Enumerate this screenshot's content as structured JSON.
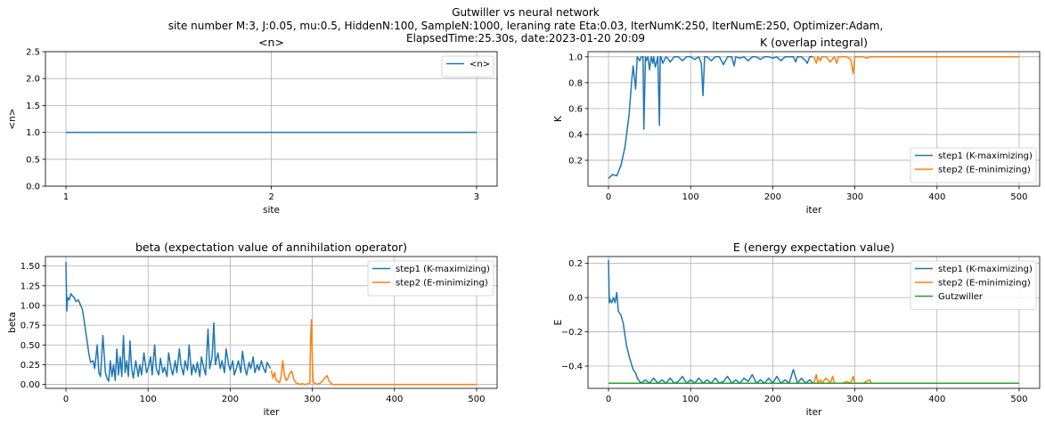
{
  "figure": {
    "title_lines": [
      "Gutwiller vs neural network",
      "site number M:3, J:0.05, mu:0.5, HiddenN:100, SampleN:1000, leraning rate Eta:0.03, IterNumK:250, IterNumE:250, Optimizer:Adam,",
      "ElapsedTime:25.30s, date:2023-01-20  20:09"
    ]
  },
  "colors": {
    "step1": "#1f77b4",
    "step2": "#ff7f0e",
    "gutzwiller": "#2ca02c",
    "grid": "#b0b0b0"
  },
  "chart_data": [
    {
      "type": "line",
      "title": "<n>",
      "xlabel": "site",
      "ylabel": "<n>",
      "xlim": [
        0.9,
        3.1
      ],
      "ylim": [
        0,
        2.5
      ],
      "xticks": [
        1,
        2,
        3
      ],
      "yticks": [
        0.0,
        0.5,
        1.0,
        1.5,
        2.0,
        2.5
      ],
      "ytick_labels": [
        "0.0",
        "0.5",
        "1.0",
        "1.5",
        "2.0",
        "2.5"
      ],
      "legend_loc": "upper right",
      "series": [
        {
          "name": "<n>",
          "color_key": "step1",
          "x": [
            1,
            2,
            3
          ],
          "y": [
            1.0,
            1.0,
            1.0
          ]
        }
      ]
    },
    {
      "type": "line",
      "title": "K (overlap integral)",
      "xlabel": "iter",
      "ylabel": "K",
      "xlim": [
        -25,
        525
      ],
      "ylim": [
        0.0,
        1.04
      ],
      "xticks": [
        0,
        100,
        200,
        300,
        400,
        500
      ],
      "yticks": [
        0.2,
        0.4,
        0.6,
        0.8,
        1.0
      ],
      "ytick_labels": [
        "0.2",
        "0.4",
        "0.6",
        "0.8",
        "1.0"
      ],
      "legend_loc": "lower right",
      "series": [
        {
          "name": "step1 (K-maximizing)",
          "color_key": "step1",
          "x": [
            0,
            5,
            10,
            15,
            20,
            25,
            28,
            30,
            33,
            35,
            38,
            40,
            42,
            43,
            45,
            46,
            48,
            50,
            52,
            54,
            55,
            57,
            60,
            62,
            63,
            64,
            66,
            70,
            72,
            75,
            80,
            85,
            90,
            95,
            100,
            105,
            110,
            113,
            115,
            117,
            120,
            125,
            130,
            135,
            140,
            145,
            150,
            153,
            155,
            160,
            165,
            170,
            175,
            180,
            185,
            190,
            195,
            200,
            205,
            210,
            215,
            220,
            225,
            228,
            230,
            235,
            240,
            242,
            245,
            249
          ],
          "y": [
            0.06,
            0.09,
            0.08,
            0.16,
            0.3,
            0.55,
            0.8,
            0.93,
            0.75,
            1.0,
            0.97,
            1.0,
            1.0,
            0.44,
            1.0,
            0.97,
            1.0,
            0.9,
            1.0,
            0.95,
            1.0,
            0.92,
            1.0,
            0.47,
            1.0,
            1.0,
            0.95,
            1.0,
            0.99,
            0.96,
            1.0,
            1.0,
            0.97,
            1.0,
            1.0,
            0.98,
            1.0,
            0.95,
            0.7,
            1.0,
            1.0,
            0.97,
            1.0,
            1.0,
            0.94,
            1.0,
            1.0,
            0.93,
            1.0,
            0.99,
            1.0,
            0.97,
            1.0,
            1.0,
            0.98,
            1.0,
            1.0,
            0.99,
            1.0,
            0.97,
            1.0,
            1.0,
            1.0,
            0.96,
            1.0,
            1.0,
            0.97,
            0.95,
            1.0,
            1.0
          ]
        },
        {
          "name": "step2 (E-minimizing)",
          "color_key": "step2",
          "x": [
            250,
            253,
            255,
            258,
            260,
            265,
            270,
            275,
            278,
            280,
            285,
            290,
            295,
            298,
            300,
            302,
            305,
            310,
            315,
            318,
            320,
            330,
            350,
            400,
            450,
            500
          ],
          "y": [
            1.0,
            0.95,
            1.0,
            0.97,
            1.0,
            1.0,
            0.96,
            1.0,
            0.95,
            1.0,
            1.0,
            1.0,
            0.98,
            0.87,
            1.0,
            1.0,
            1.0,
            1.0,
            0.99,
            1.0,
            1.0,
            1.0,
            1.0,
            1.0,
            1.0,
            1.0
          ]
        }
      ]
    },
    {
      "type": "line",
      "title": "beta (expectation value of annihilation operator)",
      "xlabel": "iter",
      "ylabel": "beta",
      "xlim": [
        -25,
        525
      ],
      "ylim": [
        -0.05,
        1.62
      ],
      "xticks": [
        0,
        100,
        200,
        300,
        400,
        500
      ],
      "yticks": [
        0.0,
        0.25,
        0.5,
        0.75,
        1.0,
        1.25,
        1.5
      ],
      "ytick_labels": [
        "0.00",
        "0.25",
        "0.50",
        "0.75",
        "1.00",
        "1.25",
        "1.50"
      ],
      "legend_loc": "upper right",
      "series": [
        {
          "name": "step1 (K-maximizing)",
          "color_key": "step1",
          "x": [
            0,
            1,
            2,
            4,
            6,
            8,
            10,
            12,
            15,
            18,
            20,
            22,
            25,
            28,
            30,
            33,
            35,
            38,
            40,
            42,
            45,
            48,
            50,
            52,
            54,
            56,
            58,
            60,
            62,
            64,
            66,
            68,
            70,
            72,
            74,
            76,
            78,
            80,
            82,
            85,
            88,
            90,
            92,
            95,
            98,
            100,
            103,
            105,
            108,
            110,
            113,
            115,
            118,
            120,
            123,
            125,
            128,
            130,
            133,
            135,
            138,
            140,
            143,
            145,
            148,
            150,
            153,
            155,
            158,
            160,
            163,
            165,
            168,
            170,
            173,
            175,
            178,
            180,
            182,
            185,
            188,
            190,
            193,
            195,
            198,
            200,
            203,
            205,
            208,
            210,
            213,
            215,
            218,
            220,
            223,
            225,
            228,
            230,
            233,
            235,
            238,
            240,
            243,
            245,
            249
          ],
          "y": [
            1.55,
            0.93,
            1.1,
            1.07,
            1.15,
            1.12,
            1.1,
            1.05,
            1.07,
            1.0,
            0.95,
            0.82,
            0.6,
            0.38,
            0.28,
            0.3,
            0.2,
            0.5,
            0.15,
            0.1,
            0.62,
            0.15,
            0.08,
            0.04,
            0.3,
            0.1,
            0.25,
            0.05,
            0.45,
            0.12,
            0.35,
            0.1,
            0.62,
            0.15,
            0.3,
            0.1,
            0.55,
            0.2,
            0.08,
            0.3,
            0.1,
            0.25,
            0.12,
            0.4,
            0.15,
            0.2,
            0.35,
            0.12,
            0.5,
            0.2,
            0.12,
            0.33,
            0.15,
            0.22,
            0.1,
            0.4,
            0.2,
            0.12,
            0.3,
            0.15,
            0.45,
            0.25,
            0.12,
            0.3,
            0.18,
            0.5,
            0.12,
            0.25,
            0.15,
            0.28,
            0.1,
            0.35,
            0.2,
            0.12,
            0.7,
            0.2,
            0.35,
            0.78,
            0.25,
            0.4,
            0.2,
            0.3,
            0.15,
            0.45,
            0.25,
            0.18,
            0.3,
            0.12,
            0.22,
            0.3,
            0.15,
            0.42,
            0.2,
            0.12,
            0.28,
            0.2,
            0.35,
            0.15,
            0.25,
            0.18,
            0.3,
            0.22,
            0.15,
            0.28,
            0.2
          ]
        },
        {
          "name": "step2 (E-minimizing)",
          "color_key": "step2",
          "x": [
            250,
            252,
            254,
            256,
            258,
            260,
            262,
            264,
            266,
            268,
            270,
            272,
            275,
            278,
            280,
            283,
            285,
            288,
            290,
            292,
            295,
            297,
            298,
            299,
            300,
            301,
            302,
            304,
            306,
            310,
            313,
            315,
            318,
            320,
            323,
            325,
            330,
            340,
            350,
            400,
            450,
            500
          ],
          "y": [
            0.18,
            0.08,
            0.15,
            0.05,
            0.04,
            0.02,
            0.1,
            0.3,
            0.12,
            0.05,
            0.07,
            0.13,
            0.17,
            0.05,
            0.02,
            0.01,
            0.0,
            0.01,
            0.0,
            0.0,
            0.01,
            0.02,
            0.6,
            0.82,
            0.3,
            0.05,
            0.02,
            0.01,
            0.0,
            0.02,
            0.05,
            0.08,
            0.11,
            0.05,
            0.01,
            0.0,
            0.0,
            0.0,
            0.0,
            0.0,
            0.0,
            0.0
          ]
        }
      ]
    },
    {
      "type": "line",
      "title": "E (energy expectation value)",
      "xlabel": "iter",
      "ylabel": "E",
      "xlim": [
        -25,
        525
      ],
      "ylim": [
        -0.53,
        0.24
      ],
      "xticks": [
        0,
        100,
        200,
        300,
        400,
        500
      ],
      "yticks": [
        -0.4,
        -0.2,
        0.0,
        0.2
      ],
      "ytick_labels": [
        "−0.4",
        "−0.2",
        "0.0",
        "0.2"
      ],
      "legend_loc": "upper right",
      "series": [
        {
          "name": "step1 (K-maximizing)",
          "color_key": "step1",
          "x": [
            0,
            1,
            2,
            4,
            6,
            8,
            10,
            12,
            15,
            18,
            20,
            22,
            25,
            28,
            30,
            33,
            35,
            38,
            40,
            45,
            50,
            55,
            60,
            65,
            70,
            75,
            80,
            85,
            90,
            95,
            100,
            105,
            110,
            115,
            120,
            125,
            130,
            135,
            140,
            145,
            150,
            155,
            160,
            165,
            170,
            175,
            180,
            185,
            190,
            195,
            200,
            205,
            210,
            215,
            220,
            225,
            230,
            235,
            240,
            245,
            249
          ],
          "y": [
            0.22,
            -0.03,
            -0.01,
            -0.03,
            0.0,
            -0.03,
            0.03,
            -0.08,
            -0.1,
            -0.15,
            -0.22,
            -0.28,
            -0.34,
            -0.39,
            -0.42,
            -0.44,
            -0.47,
            -0.49,
            -0.5,
            -0.48,
            -0.5,
            -0.47,
            -0.5,
            -0.48,
            -0.5,
            -0.47,
            -0.5,
            -0.49,
            -0.46,
            -0.5,
            -0.48,
            -0.5,
            -0.47,
            -0.5,
            -0.48,
            -0.5,
            -0.47,
            -0.5,
            -0.49,
            -0.46,
            -0.5,
            -0.48,
            -0.5,
            -0.47,
            -0.49,
            -0.45,
            -0.5,
            -0.48,
            -0.5,
            -0.47,
            -0.5,
            -0.46,
            -0.5,
            -0.48,
            -0.5,
            -0.42,
            -0.5,
            -0.47,
            -0.5,
            -0.48,
            -0.5
          ]
        },
        {
          "name": "step2 (E-minimizing)",
          "color_key": "step2",
          "x": [
            250,
            253,
            255,
            258,
            260,
            265,
            270,
            273,
            275,
            280,
            285,
            290,
            295,
            298,
            300,
            305,
            310,
            318,
            320,
            330,
            350,
            400,
            450,
            500
          ],
          "y": [
            -0.5,
            -0.45,
            -0.5,
            -0.48,
            -0.5,
            -0.47,
            -0.5,
            -0.46,
            -0.5,
            -0.5,
            -0.5,
            -0.49,
            -0.5,
            -0.46,
            -0.5,
            -0.5,
            -0.5,
            -0.48,
            -0.5,
            -0.5,
            -0.5,
            -0.5,
            -0.5,
            -0.5
          ]
        },
        {
          "name": "Gutzwiller",
          "color_key": "gutzwiller",
          "x": [
            0,
            500
          ],
          "y": [
            -0.5,
            -0.5
          ]
        }
      ]
    }
  ]
}
